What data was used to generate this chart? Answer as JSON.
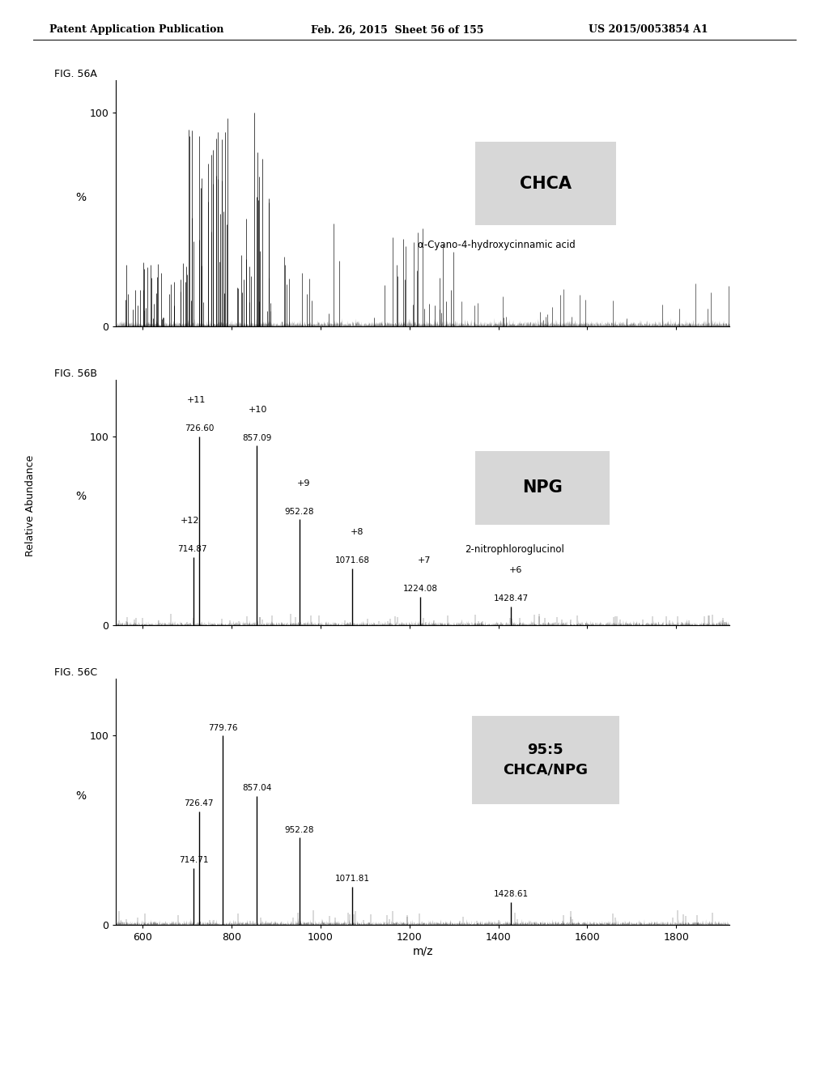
{
  "header_left": "Patent Application Publication",
  "header_mid": "Feb. 26, 2015  Sheet 56 of 155",
  "header_right": "US 2015/0053854 A1",
  "xlabel": "m/z",
  "bg_color": "#ffffff",
  "text_color": "#000000",
  "box_color": "#d3d3d3",
  "panel_A": {
    "label": "FIG. 56A",
    "compound_box": "CHCA",
    "compound_name": "α-Cyano-4-hydroxycinnamic acid",
    "xlim": [
      540,
      1920
    ],
    "ylim": [
      0,
      115
    ],
    "yticks": [
      0,
      100
    ],
    "ylabel": "%"
  },
  "panel_B": {
    "label": "FIG. 56B",
    "compound_box": "NPG",
    "compound_name": "2-nitrophloroglucinol",
    "xlim": [
      540,
      1920
    ],
    "ylim": [
      0,
      130
    ],
    "yticks": [
      0,
      100
    ],
    "ylabel": "%",
    "labeled_peaks": [
      {
        "mz": 714.87,
        "mz_label": "714.87",
        "charge": "+12",
        "rel": 36
      },
      {
        "mz": 726.6,
        "mz_label": "726.60",
        "charge": "+11",
        "rel": 100
      },
      {
        "mz": 857.09,
        "mz_label": "857.09",
        "charge": "+10",
        "rel": 95
      },
      {
        "mz": 952.28,
        "mz_label": "952.28",
        "charge": "+9",
        "rel": 56
      },
      {
        "mz": 1071.68,
        "mz_label": "1071.68",
        "charge": "+8",
        "rel": 30
      },
      {
        "mz": 1224.08,
        "mz_label": "1224.08",
        "charge": "+7",
        "rel": 15
      },
      {
        "mz": 1428.47,
        "mz_label": "1428.47",
        "charge": "+6",
        "rel": 10
      }
    ]
  },
  "panel_C": {
    "label": "FIG. 56C",
    "compound_box": "95:5\nCHCA/NPG",
    "xlim": [
      540,
      1920
    ],
    "ylim": [
      0,
      130
    ],
    "yticks": [
      0,
      100
    ],
    "ylabel": "%",
    "labeled_peaks": [
      {
        "mz": 714.71,
        "mz_label": "714.71",
        "rel": 30
      },
      {
        "mz": 726.47,
        "mz_label": "726.47",
        "rel": 60
      },
      {
        "mz": 779.76,
        "mz_label": "779.76",
        "rel": 100
      },
      {
        "mz": 857.04,
        "mz_label": "857.04",
        "rel": 68
      },
      {
        "mz": 952.28,
        "mz_label": "952.28",
        "rel": 46
      },
      {
        "mz": 1071.81,
        "mz_label": "1071.81",
        "rel": 20
      },
      {
        "mz": 1428.61,
        "mz_label": "1428.61",
        "rel": 12
      }
    ]
  }
}
